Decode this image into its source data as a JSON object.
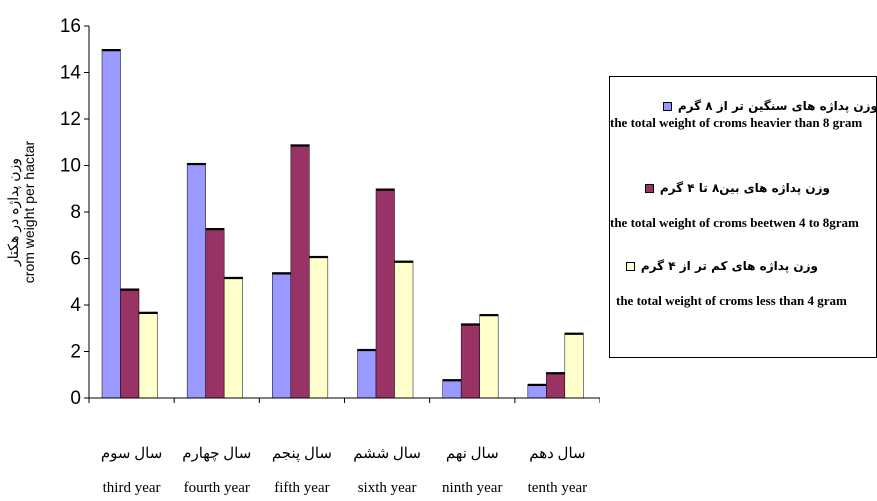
{
  "chart_data": {
    "type": "bar",
    "ylabel_lines": [
      "وزن پداژه در هکتار",
      "crom weight per hactar"
    ],
    "ylim": [
      0,
      16
    ],
    "yticks": [
      0,
      2,
      4,
      6,
      8,
      10,
      12,
      14,
      16
    ],
    "categories": [
      {
        "fa": "سال سوم",
        "en": "third year"
      },
      {
        "fa": "سال چهارم",
        "en": "fourth year"
      },
      {
        "fa": "سال پنجم",
        "en": "fifth year"
      },
      {
        "fa": "سال ششم",
        "en": "sixth year"
      },
      {
        "fa": "سال نهم",
        "en": "ninth year"
      },
      {
        "fa": "سال دهم",
        "en": "tenth year"
      }
    ],
    "series": [
      {
        "name_fa": "وزن پداژه های سنگین تر از ۸ گرم",
        "name": "the total weight of croms heavier than 8 gram",
        "color": "#9999ff",
        "values": [
          15.0,
          10.1,
          5.4,
          2.1,
          0.8,
          0.6
        ]
      },
      {
        "name_fa": "وزن پداژه های بین۸ تا ۴ گرم",
        "name": "the total weight of croms beetwen 4 to 8gram",
        "color": "#993366",
        "values": [
          4.7,
          7.3,
          10.9,
          9.0,
          3.2,
          1.1
        ]
      },
      {
        "name_fa": "وزن پداژه های کم تر از ۴ گرم",
        "name": "the total weight of croms less than 4 gram",
        "color": "#ffffcc",
        "values": [
          3.7,
          5.2,
          6.1,
          5.9,
          3.6,
          2.8
        ]
      }
    ],
    "grid": false,
    "legend_position": "right"
  }
}
